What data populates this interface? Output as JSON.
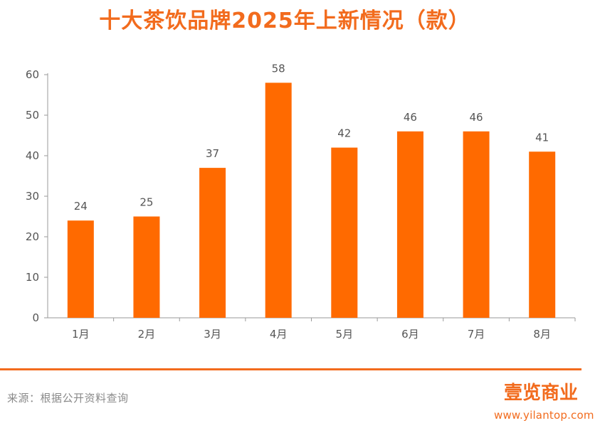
{
  "title": "十大茶饮品牌2025年上新情况（款）",
  "source_text": "来源：根据公开资料查询",
  "brand": {
    "logo_text": "壹览商业",
    "url": "www.yilantop.com",
    "color": "#f26b1d"
  },
  "colors": {
    "accent": "#f26b1d",
    "bar": "#ff6a00",
    "axis": "#9a9a9a",
    "tick_text": "#555555"
  },
  "chart_data": {
    "type": "bar",
    "title": "十大茶饮品牌2025年上新情况（款）",
    "xlabel": "",
    "ylabel": "",
    "categories": [
      "1月",
      "2月",
      "3月",
      "4月",
      "5月",
      "6月",
      "7月",
      "8月"
    ],
    "values": [
      24,
      25,
      37,
      58,
      42,
      46,
      46,
      41
    ],
    "ylim": [
      0,
      60
    ],
    "yticks": [
      0,
      10,
      20,
      30,
      40,
      50,
      60
    ],
    "grid": false,
    "legend": "none"
  }
}
